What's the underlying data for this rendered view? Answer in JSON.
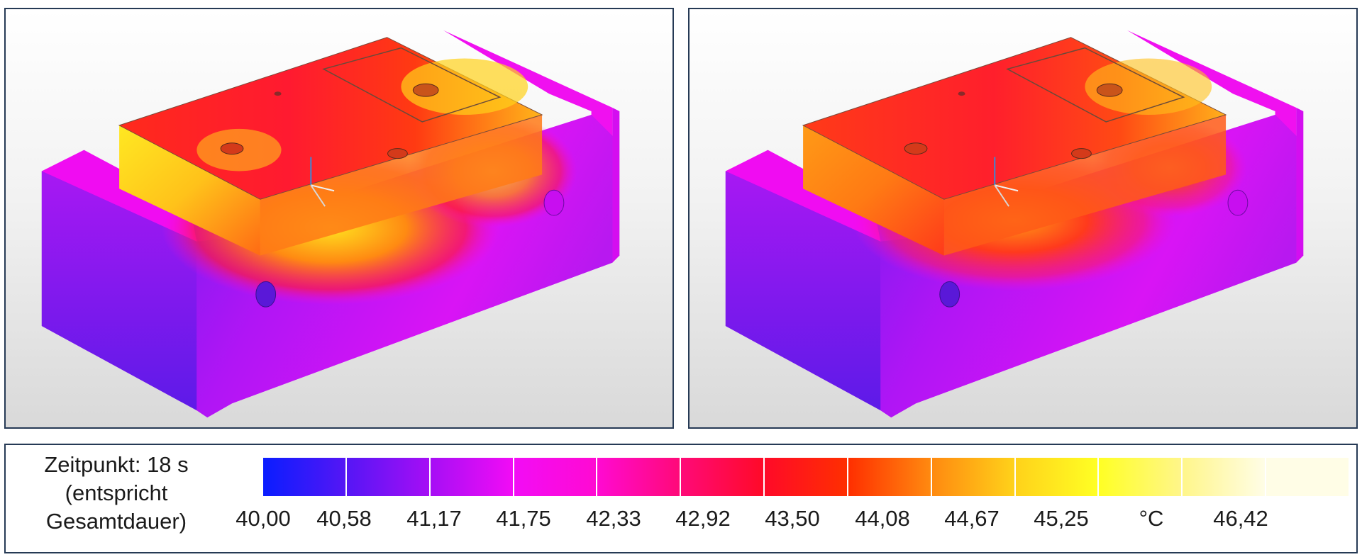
{
  "views": [
    {
      "name": "simulation-view-1",
      "hotspot_intensity": 1.0
    },
    {
      "name": "simulation-view-2",
      "hotspot_intensity": 0.7
    }
  ],
  "legend": {
    "caption_lines": [
      "Zeitpunkt: 18 s",
      "(entspricht",
      "Gesamtdauer)"
    ],
    "segment_colors": [
      "#0a1dff",
      "#5516f5",
      "#a60ef5",
      "#f20cf5",
      "#ff0ad2",
      "#ff0a78",
      "#ff0a28",
      "#ff2f00",
      "#ff8a10",
      "#ffd21a",
      "#ffff24",
      "#fff68a",
      "#fffde6"
    ],
    "tick_labels": [
      "40,00",
      "40,58",
      "41,17",
      "41,75",
      "42,33",
      "42,92",
      "43,50",
      "44,08",
      "44,67",
      "45,25",
      "°C",
      "46,42"
    ]
  },
  "colors": {
    "border": "#263a55",
    "magenta": "#f20cf5",
    "violet": "#8a17f0",
    "red": "#ff1a28",
    "yellow": "#ffe21f"
  }
}
